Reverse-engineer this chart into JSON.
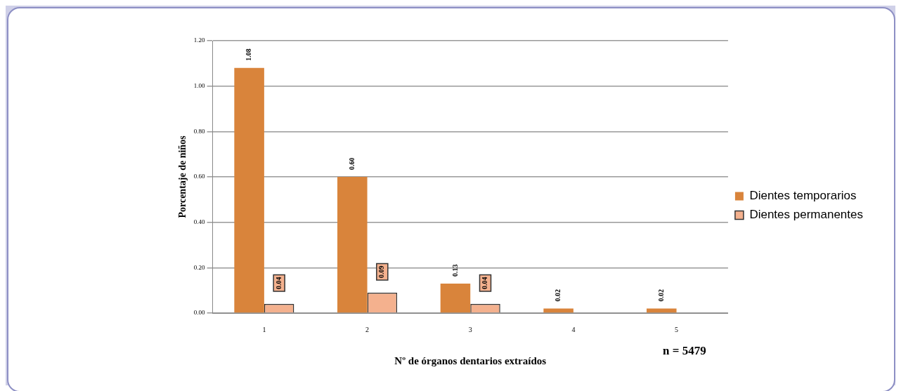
{
  "chart_data": {
    "type": "bar",
    "xlabel": "Nº de órganos dentarios extraídos",
    "ylabel": "Porcentaje de niños",
    "categories": [
      "1",
      "2",
      "3",
      "4",
      "5"
    ],
    "series": [
      {
        "name": "Dientes temporarios",
        "color": "#d9843b",
        "values": [
          1.08,
          0.6,
          0.13,
          0.02,
          0.02
        ],
        "value_labels": [
          "1.08",
          "0.60",
          "0.13",
          "0.02",
          "0.02"
        ]
      },
      {
        "name": "Dientes permanentes",
        "color": "#f4b18e",
        "values": [
          0.04,
          0.09,
          0.04,
          null,
          null
        ],
        "value_labels": [
          "0.04",
          "0.09",
          "0.04",
          null,
          null
        ]
      }
    ],
    "ylim": [
      0,
      1.2
    ],
    "yticks": [
      {
        "value": 0,
        "label": "0.00"
      },
      {
        "value": 0.2,
        "label": "0.20"
      },
      {
        "value": 0.4,
        "label": "0.40"
      },
      {
        "value": 0.6,
        "label": "0.60"
      },
      {
        "value": 0.8,
        "label": "0.80"
      },
      {
        "value": 1.0,
        "label": "1.00"
      },
      {
        "value": 1.2,
        "label": "1.20"
      }
    ],
    "grid": "y",
    "legend": "right",
    "annotations": [
      "n = 5479"
    ]
  }
}
